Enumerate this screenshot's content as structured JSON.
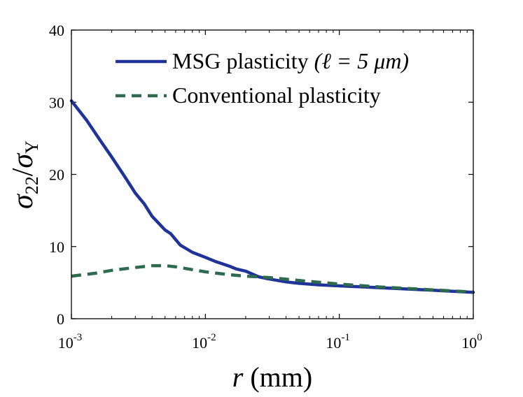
{
  "chart_data": {
    "type": "line",
    "title": "",
    "xscale": "log",
    "xlim": [
      0.001,
      1
    ],
    "ylim": [
      0,
      40
    ],
    "xlabel": {
      "var": "r",
      "units": "(mm)"
    },
    "ylabel": {
      "num": "σ",
      "num_sub": "22",
      "slash": "/",
      "den": "σ",
      "den_sub": "Y"
    },
    "x_ticks": [
      {
        "base": "10",
        "exp": "-3",
        "value": 0.001
      },
      {
        "base": "10",
        "exp": "-2",
        "value": 0.01
      },
      {
        "base": "10",
        "exp": "-1",
        "value": 0.1
      },
      {
        "base": "10",
        "exp": "0",
        "value": 1
      }
    ],
    "y_ticks": [
      {
        "label": "0",
        "value": 0
      },
      {
        "label": "10",
        "value": 10
      },
      {
        "label": "20",
        "value": 20
      },
      {
        "label": "30",
        "value": 30
      },
      {
        "label": "40",
        "value": 40
      }
    ],
    "legend_position": "top-right",
    "series": [
      {
        "name": "MSG plasticity",
        "name_suffix": "(ℓ = 5 μm)",
        "color": "#1f3399",
        "style": "solid",
        "x": [
          0.001,
          0.0013,
          0.0016,
          0.002,
          0.0025,
          0.003,
          0.0035,
          0.004,
          0.005,
          0.0055,
          0.0065,
          0.008,
          0.01,
          0.012,
          0.015,
          0.017,
          0.02,
          0.025,
          0.03,
          0.04,
          0.05,
          0.07,
          0.1,
          0.2,
          0.3,
          0.5,
          0.7,
          1.0
        ],
        "y": [
          30.2,
          27.5,
          25.0,
          22.4,
          19.7,
          17.4,
          15.9,
          14.2,
          12.3,
          11.8,
          10.2,
          9.2,
          8.5,
          7.9,
          7.3,
          6.9,
          6.6,
          5.8,
          5.5,
          5.1,
          4.9,
          4.7,
          4.55,
          4.3,
          4.15,
          3.95,
          3.8,
          3.65
        ]
      },
      {
        "name": "Conventional plasticity",
        "name_suffix": "",
        "color": "#2e6b4e",
        "style": "dashed",
        "x": [
          0.001,
          0.0015,
          0.002,
          0.003,
          0.004,
          0.005,
          0.006,
          0.008,
          0.01,
          0.015,
          0.02,
          0.03,
          0.05,
          0.1,
          0.2,
          0.5,
          1.0
        ],
        "y": [
          5.9,
          6.3,
          6.7,
          7.1,
          7.35,
          7.35,
          7.2,
          6.8,
          6.5,
          6.1,
          5.9,
          5.7,
          5.3,
          4.8,
          4.4,
          4.0,
          3.7
        ]
      }
    ]
  }
}
